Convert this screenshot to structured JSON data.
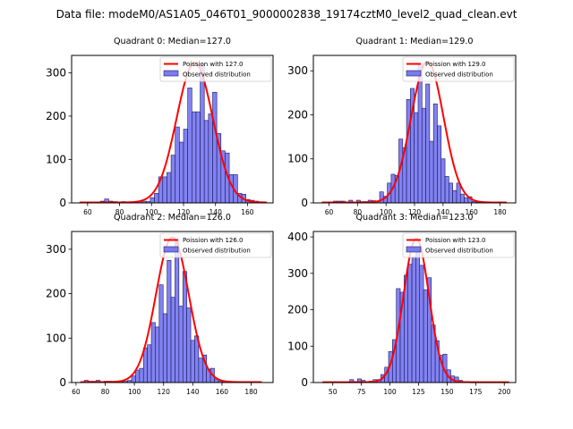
{
  "figure": {
    "suptitle": "Data file: modeM0/AS1A05_046T01_9000002838_19174cztM0_level2_quad_clean.evt"
  },
  "colors": {
    "bar_fill": "#7b7bf0",
    "bar_edge": "#1a1a5e",
    "poisson_line": "#ff0000",
    "axis": "#000000"
  },
  "chart_data": [
    {
      "type": "bar",
      "title": "Quadrant 0: Median=127.0",
      "legend": [
        "Poission with 127.0",
        "Observed distribution"
      ],
      "legend_position": "top-right",
      "xlim": [
        50,
        176
      ],
      "ylim": [
        0,
        340
      ],
      "xticks": [
        60,
        80,
        100,
        120,
        140,
        160
      ],
      "yticks": [
        0,
        100,
        200,
        300
      ],
      "bin_width": 2.6,
      "bins_start": 55,
      "values": [
        1,
        1,
        2,
        1,
        2,
        4,
        9,
        4,
        3,
        2,
        3,
        1,
        1,
        3,
        4,
        4,
        3,
        12,
        22,
        60,
        60,
        70,
        110,
        175,
        140,
        170,
        265,
        210,
        210,
        320,
        190,
        205,
        255,
        160,
        120,
        115,
        65,
        65,
        22,
        20,
        8,
        6,
        4,
        2,
        1
      ],
      "poisson_mean": 127.0,
      "poisson_peak": 322
    },
    {
      "type": "bar",
      "title": "Quadrant 1: Median=129.0",
      "legend": [
        "Poission with 129.0",
        "Observed distribution"
      ],
      "legend_position": "top-right",
      "xlim": [
        49,
        191
      ],
      "ylim": [
        0,
        335
      ],
      "xticks": [
        60,
        80,
        100,
        120,
        140,
        160,
        180
      ],
      "yticks": [
        0,
        100,
        200,
        300
      ],
      "bin_width": 2.7,
      "bins_start": 55,
      "values": [
        1,
        1,
        1,
        4,
        4,
        4,
        2,
        6,
        2,
        6,
        3,
        3,
        6,
        5,
        3,
        25,
        15,
        45,
        65,
        62,
        145,
        125,
        235,
        260,
        205,
        315,
        215,
        270,
        140,
        225,
        175,
        100,
        60,
        45,
        28,
        45,
        20,
        12,
        14,
        3,
        2,
        2,
        1,
        1,
        1,
        1,
        1,
        1
      ],
      "poisson_mean": 129.0,
      "poisson_peak": 320
    },
    {
      "type": "bar",
      "title": "Quadrant 2: Median=126.0",
      "legend": [
        "Poission with 126.0",
        "Observed distribution"
      ],
      "legend_position": "top-right",
      "xlim": [
        57,
        195
      ],
      "ylim": [
        0,
        340
      ],
      "xticks": [
        60,
        80,
        100,
        120,
        140,
        160,
        180
      ],
      "yticks": [
        0,
        100,
        200,
        300
      ],
      "bin_width": 2.7,
      "bins_start": 63,
      "values": [
        1,
        5,
        3,
        3,
        5,
        2,
        3,
        3,
        1,
        1,
        2,
        3,
        5,
        15,
        28,
        32,
        78,
        85,
        135,
        125,
        220,
        155,
        275,
        192,
        320,
        172,
        250,
        168,
        95,
        105,
        55,
        62,
        30,
        32,
        8,
        3,
        2,
        1,
        1,
        1,
        1,
        1,
        1,
        1,
        1,
        1
      ],
      "poisson_mean": 126.0,
      "poisson_peak": 326
    },
    {
      "type": "bar",
      "title": "Quadrant 3: Median=123.0",
      "legend": [
        "Poission with 123.0",
        "Observed distribution"
      ],
      "legend_position": "top-right",
      "xlim": [
        33,
        210
      ],
      "ylim": [
        0,
        415
      ],
      "xticks": [
        50,
        75,
        100,
        125,
        150,
        175,
        200
      ],
      "yticks": [
        0,
        100,
        200,
        300,
        400
      ],
      "bin_width": 3.4,
      "bins_start": 41,
      "values": [
        1,
        1,
        1,
        1,
        1,
        1,
        1,
        8,
        3,
        10,
        6,
        2,
        4,
        8,
        8,
        22,
        42,
        85,
        118,
        258,
        248,
        295,
        325,
        345,
        365,
        322,
        255,
        288,
        158,
        115,
        75,
        78,
        35,
        18,
        15,
        6,
        3,
        2,
        1,
        1,
        1,
        1,
        1,
        1,
        1,
        1,
        1,
        1
      ],
      "poisson_mean": 123.0,
      "poisson_peak": 395
    }
  ]
}
